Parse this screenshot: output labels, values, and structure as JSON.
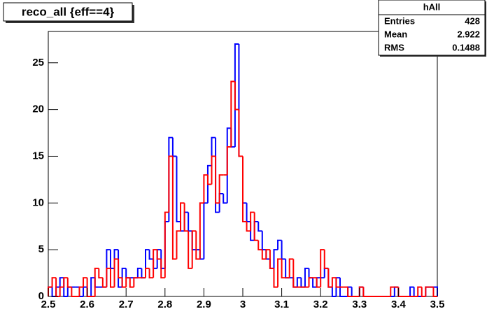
{
  "chart_data": {
    "type": "histogram",
    "title": "reco_all {eff==4}",
    "bins": [
      2.5,
      2.51,
      2.52,
      2.53,
      2.54,
      2.55,
      2.56,
      2.57,
      2.58,
      2.59,
      2.6,
      2.61,
      2.62,
      2.63,
      2.64,
      2.65,
      2.66,
      2.67,
      2.68,
      2.69,
      2.7,
      2.71,
      2.72,
      2.73,
      2.74,
      2.75,
      2.76,
      2.77,
      2.78,
      2.79,
      2.8,
      2.81,
      2.82,
      2.83,
      2.84,
      2.85,
      2.86,
      2.87,
      2.88,
      2.89,
      2.9,
      2.91,
      2.92,
      2.93,
      2.94,
      2.95,
      2.96,
      2.97,
      2.98,
      2.99,
      3,
      3.01,
      3.02,
      3.03,
      3.04,
      3.05,
      3.06,
      3.07,
      3.08,
      3.09,
      3.1,
      3.11,
      3.12,
      3.13,
      3.14,
      3.15,
      3.16,
      3.17,
      3.18,
      3.19,
      3.2,
      3.21,
      3.22,
      3.23,
      3.24,
      3.25,
      3.26,
      3.27,
      3.28,
      3.29,
      3.3,
      3.31,
      3.32,
      3.33,
      3.34,
      3.35,
      3.36,
      3.37,
      3.38,
      3.39,
      3.4,
      3.41,
      3.42,
      3.43,
      3.44,
      3.45,
      3.46,
      3.47,
      3.48,
      3.49,
      3.5
    ],
    "series": [
      {
        "color": "#0000ff",
        "values": [
          1,
          0,
          1,
          2,
          0,
          1,
          1,
          1,
          0,
          1,
          0,
          2,
          1,
          1,
          1,
          5,
          3,
          5,
          1,
          3,
          2,
          2,
          2,
          3,
          2,
          5,
          4,
          3,
          5,
          3,
          8,
          17,
          15,
          8,
          7,
          9,
          7,
          5,
          5,
          4,
          10,
          14,
          17,
          9,
          11,
          10,
          18,
          16,
          27,
          15,
          10,
          8,
          6,
          8,
          7,
          5,
          4,
          3,
          5,
          6,
          4,
          2,
          2,
          1,
          2,
          1,
          3,
          2,
          1,
          2,
          2,
          3,
          1,
          0,
          2,
          0,
          0,
          1,
          0,
          0,
          1,
          0,
          0,
          0,
          0,
          0,
          0,
          0,
          0,
          1,
          0,
          0,
          0,
          1,
          0,
          0,
          0,
          1,
          1,
          1
        ]
      },
      {
        "color": "#ff0000",
        "values": [
          1,
          2,
          0,
          1,
          2,
          1,
          0,
          0,
          1,
          2,
          0,
          0,
          3,
          2,
          1,
          3,
          1,
          4,
          2,
          1,
          2,
          1,
          2,
          2,
          2,
          3,
          2,
          5,
          4,
          2,
          9,
          15,
          4,
          7,
          10,
          7,
          3,
          7,
          4,
          10,
          13,
          12,
          15,
          10,
          13,
          13,
          16,
          23,
          20,
          15,
          8,
          7,
          9,
          6,
          5,
          4,
          5,
          3,
          1,
          4,
          2,
          2,
          4,
          1,
          1,
          1,
          1,
          2,
          2,
          1,
          5,
          3,
          1,
          2,
          1,
          1,
          1,
          0,
          0,
          0,
          1,
          0,
          0,
          0,
          0,
          0,
          0,
          0,
          1,
          1,
          0,
          0,
          0,
          0,
          0,
          1,
          0,
          1,
          1,
          0
        ]
      }
    ],
    "xlim": [
      2.5,
      3.5
    ],
    "xticks": [
      2.5,
      2.6,
      2.7,
      2.8,
      2.9,
      3,
      3.1,
      3.2,
      3.3,
      3.4,
      3.5
    ],
    "ylim": [
      0,
      28.35
    ],
    "yticks": [
      0,
      5,
      10,
      15,
      20,
      25
    ],
    "stats": {
      "title": "hAll",
      "rows": [
        [
          "Entries",
          "428"
        ],
        [
          "Mean",
          "2.922"
        ],
        [
          "RMS",
          "0.1488"
        ]
      ]
    }
  }
}
